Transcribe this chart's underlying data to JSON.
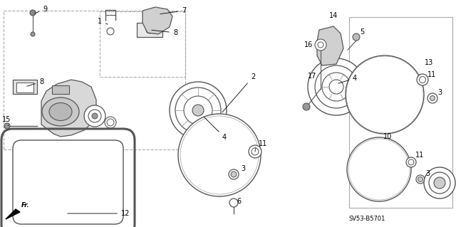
{
  "bg_color": "#ffffff",
  "fig_width": 6.4,
  "fig_height": 3.19,
  "dpi": 100,
  "diagram_code": "SV53-B5701",
  "line_color": "#555555",
  "label_fontsize": 7
}
